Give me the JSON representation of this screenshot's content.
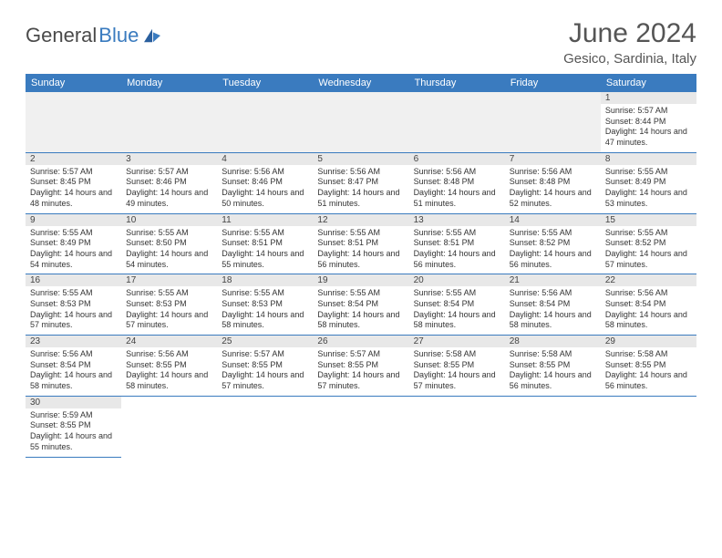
{
  "brand": {
    "part1": "General",
    "part2": "Blue"
  },
  "title": "June 2024",
  "location": "Gesico, Sardinia, Italy",
  "colors": {
    "header_bg": "#3a7bbf",
    "header_fg": "#ffffff",
    "daynum_bg": "#e8e8e8",
    "border": "#3a7bbf",
    "empty_bg": "#f0f0f0"
  },
  "weekdays": [
    "Sunday",
    "Monday",
    "Tuesday",
    "Wednesday",
    "Thursday",
    "Friday",
    "Saturday"
  ],
  "grid": {
    "startOffset": 6,
    "days": [
      {
        "n": 1,
        "sunrise": "5:57 AM",
        "sunset": "8:44 PM",
        "daylight": "14 hours and 47 minutes."
      },
      {
        "n": 2,
        "sunrise": "5:57 AM",
        "sunset": "8:45 PM",
        "daylight": "14 hours and 48 minutes."
      },
      {
        "n": 3,
        "sunrise": "5:57 AM",
        "sunset": "8:46 PM",
        "daylight": "14 hours and 49 minutes."
      },
      {
        "n": 4,
        "sunrise": "5:56 AM",
        "sunset": "8:46 PM",
        "daylight": "14 hours and 50 minutes."
      },
      {
        "n": 5,
        "sunrise": "5:56 AM",
        "sunset": "8:47 PM",
        "daylight": "14 hours and 51 minutes."
      },
      {
        "n": 6,
        "sunrise": "5:56 AM",
        "sunset": "8:48 PM",
        "daylight": "14 hours and 51 minutes."
      },
      {
        "n": 7,
        "sunrise": "5:56 AM",
        "sunset": "8:48 PM",
        "daylight": "14 hours and 52 minutes."
      },
      {
        "n": 8,
        "sunrise": "5:55 AM",
        "sunset": "8:49 PM",
        "daylight": "14 hours and 53 minutes."
      },
      {
        "n": 9,
        "sunrise": "5:55 AM",
        "sunset": "8:49 PM",
        "daylight": "14 hours and 54 minutes."
      },
      {
        "n": 10,
        "sunrise": "5:55 AM",
        "sunset": "8:50 PM",
        "daylight": "14 hours and 54 minutes."
      },
      {
        "n": 11,
        "sunrise": "5:55 AM",
        "sunset": "8:51 PM",
        "daylight": "14 hours and 55 minutes."
      },
      {
        "n": 12,
        "sunrise": "5:55 AM",
        "sunset": "8:51 PM",
        "daylight": "14 hours and 56 minutes."
      },
      {
        "n": 13,
        "sunrise": "5:55 AM",
        "sunset": "8:51 PM",
        "daylight": "14 hours and 56 minutes."
      },
      {
        "n": 14,
        "sunrise": "5:55 AM",
        "sunset": "8:52 PM",
        "daylight": "14 hours and 56 minutes."
      },
      {
        "n": 15,
        "sunrise": "5:55 AM",
        "sunset": "8:52 PM",
        "daylight": "14 hours and 57 minutes."
      },
      {
        "n": 16,
        "sunrise": "5:55 AM",
        "sunset": "8:53 PM",
        "daylight": "14 hours and 57 minutes."
      },
      {
        "n": 17,
        "sunrise": "5:55 AM",
        "sunset": "8:53 PM",
        "daylight": "14 hours and 57 minutes."
      },
      {
        "n": 18,
        "sunrise": "5:55 AM",
        "sunset": "8:53 PM",
        "daylight": "14 hours and 58 minutes."
      },
      {
        "n": 19,
        "sunrise": "5:55 AM",
        "sunset": "8:54 PM",
        "daylight": "14 hours and 58 minutes."
      },
      {
        "n": 20,
        "sunrise": "5:55 AM",
        "sunset": "8:54 PM",
        "daylight": "14 hours and 58 minutes."
      },
      {
        "n": 21,
        "sunrise": "5:56 AM",
        "sunset": "8:54 PM",
        "daylight": "14 hours and 58 minutes."
      },
      {
        "n": 22,
        "sunrise": "5:56 AM",
        "sunset": "8:54 PM",
        "daylight": "14 hours and 58 minutes."
      },
      {
        "n": 23,
        "sunrise": "5:56 AM",
        "sunset": "8:54 PM",
        "daylight": "14 hours and 58 minutes."
      },
      {
        "n": 24,
        "sunrise": "5:56 AM",
        "sunset": "8:55 PM",
        "daylight": "14 hours and 58 minutes."
      },
      {
        "n": 25,
        "sunrise": "5:57 AM",
        "sunset": "8:55 PM",
        "daylight": "14 hours and 57 minutes."
      },
      {
        "n": 26,
        "sunrise": "5:57 AM",
        "sunset": "8:55 PM",
        "daylight": "14 hours and 57 minutes."
      },
      {
        "n": 27,
        "sunrise": "5:58 AM",
        "sunset": "8:55 PM",
        "daylight": "14 hours and 57 minutes."
      },
      {
        "n": 28,
        "sunrise": "5:58 AM",
        "sunset": "8:55 PM",
        "daylight": "14 hours and 56 minutes."
      },
      {
        "n": 29,
        "sunrise": "5:58 AM",
        "sunset": "8:55 PM",
        "daylight": "14 hours and 56 minutes."
      },
      {
        "n": 30,
        "sunrise": "5:59 AM",
        "sunset": "8:55 PM",
        "daylight": "14 hours and 55 minutes."
      }
    ]
  },
  "labels": {
    "sunrise": "Sunrise:",
    "sunset": "Sunset:",
    "daylight": "Daylight:"
  }
}
